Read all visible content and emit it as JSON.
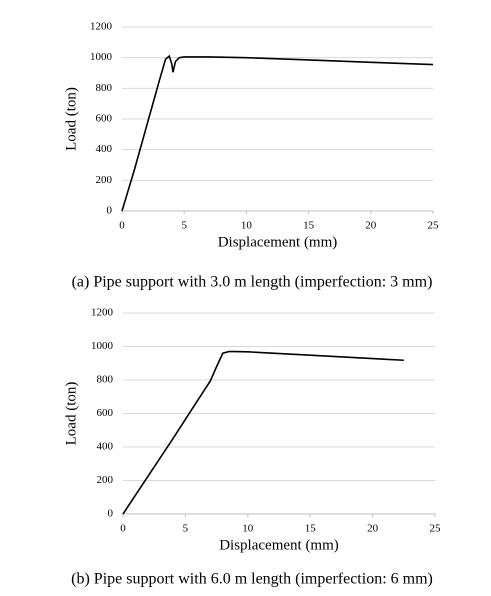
{
  "chart_data": [
    {
      "type": "line",
      "x_label": "Displacement (mm)",
      "y_label": "Load (ton)",
      "caption": "(a) Pipe support with 3.0 m length (imperfection: 3 mm)",
      "x": [
        0,
        1,
        2,
        3,
        3.5,
        3.8,
        4.0,
        4.1,
        4.3,
        4.6,
        5,
        7,
        10,
        15,
        20,
        25
      ],
      "values": [
        0,
        270,
        560,
        850,
        990,
        1010,
        960,
        905,
        975,
        1000,
        1005,
        1005,
        1000,
        985,
        970,
        955
      ],
      "color": "#000000",
      "xlim": [
        0,
        25
      ],
      "xticks": [
        0,
        5,
        10,
        15,
        20,
        25
      ],
      "ylim": [
        0,
        1200
      ],
      "yticks": [
        0,
        200,
        400,
        600,
        800,
        1000,
        1200
      ],
      "grid": true
    },
    {
      "type": "line",
      "x_label": "Displacement (mm)",
      "y_label": "Load (ton)",
      "caption": "(b) Pipe support with 6.0 m length (imperfection: 6 mm)",
      "x": [
        0,
        2,
        4,
        6,
        7,
        7.5,
        8,
        8.5,
        9,
        10,
        15,
        20,
        22.5
      ],
      "values": [
        0,
        225,
        450,
        680,
        795,
        880,
        960,
        970,
        970,
        968,
        948,
        928,
        918
      ],
      "color": "#000000",
      "xlim": [
        0,
        25
      ],
      "xticks": [
        0,
        5,
        10,
        15,
        20,
        25
      ],
      "ylim": [
        0,
        1200
      ],
      "yticks": [
        0,
        200,
        400,
        600,
        800,
        1000,
        1200
      ],
      "grid": true
    }
  ]
}
